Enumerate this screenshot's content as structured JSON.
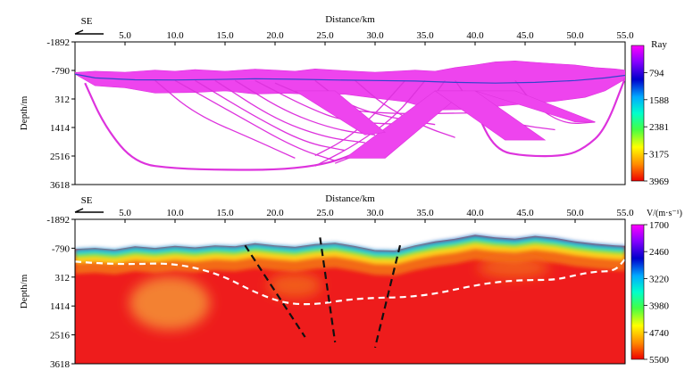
{
  "colors": {
    "ray": "#ee44ee",
    "ray_blue": "#3344cc",
    "fault": "#111111",
    "boundary": "#ffffff"
  },
  "chart_data": [
    {
      "type": "area",
      "title": "",
      "direction_label": "SE",
      "xlabel": "Distance/km",
      "ylabel": "Depth/m",
      "x_ticks": [
        "5.0",
        "10.0",
        "15.0",
        "20.0",
        "25.0",
        "30.0",
        "35.0",
        "40.0",
        "45.0",
        "50.0",
        "55.0"
      ],
      "y_ticks": [
        "-1892",
        "-790",
        "312",
        "1414",
        "2516",
        "3618"
      ],
      "xlim": [
        0,
        55
      ],
      "ylim": [
        -1892,
        3618
      ],
      "colorbar": {
        "title": "Ray",
        "ticks": [
          "794",
          "1588",
          "2381",
          "3175",
          "3969"
        ]
      },
      "rays": {
        "top_surface": [
          [
            0,
            -710
          ],
          [
            2,
            -760
          ],
          [
            5,
            -720
          ],
          [
            8,
            -800
          ],
          [
            10,
            -760
          ],
          [
            12,
            -820
          ],
          [
            15,
            -760
          ],
          [
            18,
            -840
          ],
          [
            20,
            -800
          ],
          [
            22,
            -760
          ],
          [
            24,
            -850
          ],
          [
            26,
            -800
          ],
          [
            28,
            -760
          ],
          [
            30,
            -720
          ],
          [
            32,
            -760
          ],
          [
            34,
            -800
          ],
          [
            36,
            -760
          ],
          [
            38,
            -900
          ],
          [
            40,
            -1000
          ],
          [
            42,
            -1120
          ],
          [
            44,
            -1160
          ],
          [
            46,
            -1100
          ],
          [
            48,
            -1050
          ],
          [
            50,
            -1000
          ],
          [
            52,
            -900
          ],
          [
            54,
            -850
          ],
          [
            55,
            -800
          ]
        ],
        "main_base": [
          [
            0,
            -650
          ],
          [
            2,
            -200
          ],
          [
            5,
            -120
          ],
          [
            8,
            80
          ],
          [
            12,
            60
          ],
          [
            15,
            0
          ],
          [
            18,
            120
          ],
          [
            21,
            90
          ],
          [
            24,
            140
          ],
          [
            27,
            130
          ],
          [
            30,
            280
          ],
          [
            33,
            420
          ],
          [
            36,
            740
          ],
          [
            39,
            720
          ],
          [
            42,
            600
          ],
          [
            45,
            500
          ],
          [
            48,
            400
          ],
          [
            51,
            250
          ],
          [
            53,
            0
          ],
          [
            55,
            -450
          ]
        ],
        "blue_base": [
          [
            0,
            -650
          ],
          [
            2,
            -500
          ],
          [
            6,
            -430
          ],
          [
            10,
            -420
          ],
          [
            14,
            -440
          ],
          [
            18,
            -470
          ],
          [
            22,
            -450
          ],
          [
            26,
            -420
          ],
          [
            30,
            -400
          ],
          [
            34,
            -380
          ],
          [
            38,
            -330
          ],
          [
            42,
            -300
          ],
          [
            46,
            -330
          ],
          [
            50,
            -400
          ],
          [
            53,
            -500
          ],
          [
            55,
            -600
          ]
        ],
        "lower_curve": [
          [
            1,
            -300
          ],
          [
            3,
            1400
          ],
          [
            6,
            2800
          ],
          [
            10,
            3000
          ],
          [
            15,
            3050
          ],
          [
            20,
            3050
          ],
          [
            24,
            2900
          ],
          [
            27,
            2600
          ],
          [
            31,
            1900
          ]
        ],
        "right_curve": [
          [
            40,
            700
          ],
          [
            42,
            2300
          ],
          [
            45,
            2520
          ],
          [
            49,
            2520
          ],
          [
            51,
            2200
          ],
          [
            53,
            1500
          ],
          [
            55,
            -500
          ]
        ]
      }
    },
    {
      "type": "heatmap",
      "title": "",
      "direction_label": "SE",
      "xlabel": "Distance/km",
      "ylabel": "Depth/m",
      "x_ticks": [
        "5.0",
        "10.0",
        "15.0",
        "20.0",
        "25.0",
        "30.0",
        "35.0",
        "40.0",
        "45.0",
        "50.0",
        "55.0"
      ],
      "y_ticks": [
        "-1892",
        "-790",
        "312",
        "1414",
        "2516",
        "3618"
      ],
      "xlim": [
        0,
        55
      ],
      "ylim": [
        -1892,
        3618
      ],
      "colorbar": {
        "title": "V/(m·s⁻¹)",
        "ticks": [
          "1700",
          "2460",
          "3220",
          "3980",
          "4740",
          "5500"
        ]
      },
      "surface": [
        [
          0,
          -760
        ],
        [
          2,
          -800
        ],
        [
          4,
          -740
        ],
        [
          6,
          -860
        ],
        [
          8,
          -800
        ],
        [
          10,
          -880
        ],
        [
          12,
          -820
        ],
        [
          14,
          -900
        ],
        [
          16,
          -860
        ],
        [
          18,
          -980
        ],
        [
          20,
          -900
        ],
        [
          22,
          -840
        ],
        [
          24,
          -950
        ],
        [
          26,
          -1000
        ],
        [
          28,
          -870
        ],
        [
          30,
          -720
        ],
        [
          32,
          -700
        ],
        [
          34,
          -900
        ],
        [
          36,
          -1050
        ],
        [
          38,
          -1150
        ],
        [
          40,
          -1300
        ],
        [
          42,
          -1200
        ],
        [
          44,
          -1150
        ],
        [
          46,
          -1260
        ],
        [
          48,
          -1180
        ],
        [
          50,
          -1050
        ],
        [
          52,
          -960
        ],
        [
          54,
          -900
        ],
        [
          55,
          -880
        ]
      ],
      "boundary_line": [
        [
          0,
          -280
        ],
        [
          3,
          -200
        ],
        [
          6,
          -180
        ],
        [
          9,
          -220
        ],
        [
          12,
          -60
        ],
        [
          15,
          300
        ],
        [
          18,
          900
        ],
        [
          21,
          1320
        ],
        [
          24,
          1360
        ],
        [
          27,
          1180
        ],
        [
          30,
          1100
        ],
        [
          33,
          1080
        ],
        [
          36,
          950
        ],
        [
          39,
          700
        ],
        [
          42,
          500
        ],
        [
          45,
          420
        ],
        [
          48,
          420
        ],
        [
          50,
          240
        ],
        [
          52,
          100
        ],
        [
          54,
          80
        ],
        [
          55,
          -380
        ]
      ],
      "faults": [
        [
          [
            17,
            -900
          ],
          [
            23,
            2600
          ]
        ],
        [
          [
            24.5,
            -1200
          ],
          [
            26,
            2800
          ]
        ],
        [
          [
            32.5,
            -900
          ],
          [
            30,
            3000
          ]
        ]
      ]
    }
  ]
}
